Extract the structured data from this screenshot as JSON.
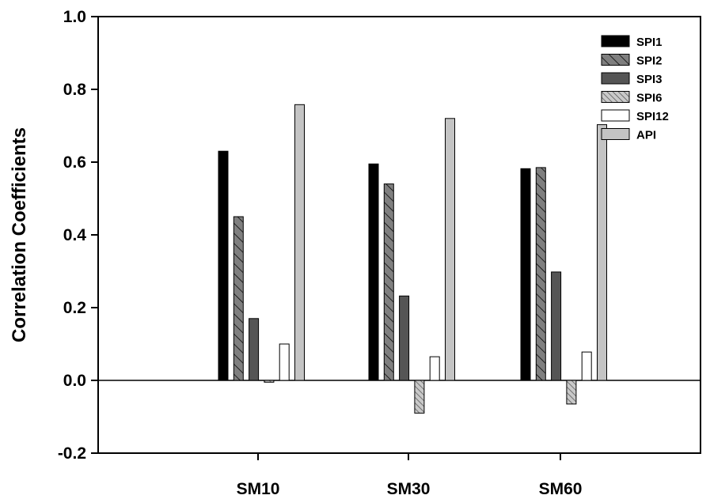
{
  "chart_data": {
    "type": "bar",
    "title": "",
    "xlabel": "",
    "ylabel": "Correlation Coefficients",
    "ylim": [
      -0.2,
      1.0
    ],
    "yticks": [
      "-0.2",
      "0.0",
      "0.2",
      "0.4",
      "0.6",
      "0.8",
      "1.0"
    ],
    "categories": [
      "SM10",
      "SM30",
      "SM60"
    ],
    "grid": false,
    "legend_position": "top-right",
    "series": [
      {
        "name": "SPI1",
        "values": [
          0.63,
          0.595,
          0.582
        ],
        "fill": "#000000",
        "pattern": "solid"
      },
      {
        "name": "SPI2",
        "values": [
          0.45,
          0.54,
          0.585
        ],
        "fill": "#7f7f7f",
        "pattern": "diagonal"
      },
      {
        "name": "SPI3",
        "values": [
          0.17,
          0.232,
          0.298
        ],
        "fill": "#555555",
        "pattern": "solid"
      },
      {
        "name": "SPI6",
        "values": [
          -0.005,
          -0.09,
          -0.065
        ],
        "fill": "#b5b5b5",
        "pattern": "dense-diagonal"
      },
      {
        "name": "SPI12",
        "values": [
          0.1,
          0.065,
          0.078
        ],
        "fill": "#ffffff",
        "pattern": "solid"
      },
      {
        "name": "API",
        "values": [
          0.758,
          0.72,
          0.703
        ],
        "fill": "#c4c4c4",
        "pattern": "solid"
      }
    ]
  }
}
